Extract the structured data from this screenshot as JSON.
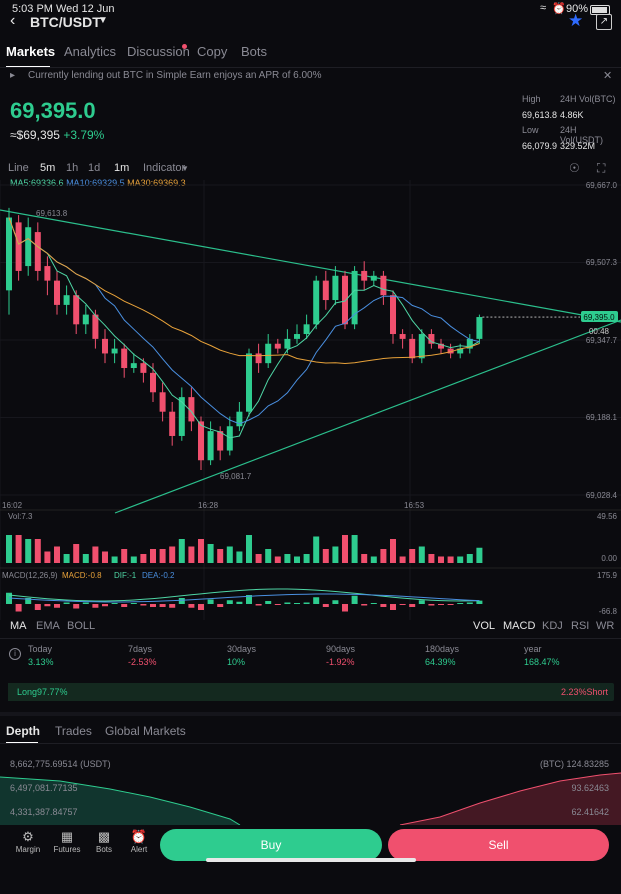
{
  "status": {
    "time": "5:03 PM",
    "date": "Wed 12 Jun",
    "battery": "90%"
  },
  "header": {
    "pair": "BTC/USDT"
  },
  "tabs": [
    "Markets",
    "Analytics",
    "Discussion",
    "Copy",
    "Bots"
  ],
  "notice": {
    "text": "Currently lending out BTC in Simple Earn enjoys an APR of 6.00%"
  },
  "ticker": {
    "price": "69,395.0",
    "fiat": "≈$69,395",
    "change": "+3.79%",
    "high_label": "High",
    "high": "69,613.8",
    "low_label": "Low",
    "low": "66,079.9",
    "vol_btc_label": "24H Vol(BTC)",
    "vol_btc": "4.86K",
    "vol_usdt_label": "24H Vol(USDT)",
    "vol_usdt": "329.52M"
  },
  "intervals": [
    "Line",
    "5m",
    "1h",
    "1d",
    "1m",
    "Indicator"
  ],
  "indicators": {
    "ma5": "MA5:69336.6",
    "ma10": "MA10:69329.5",
    "ma30": "MA30:69369.3"
  },
  "chart_data": {
    "type": "candlestick",
    "y_ticks": [
      "69,667.0",
      "69,507.3",
      "69,347.7",
      "69,188.1",
      "69,028.4"
    ],
    "x_ticks": [
      "16:02",
      "16:28",
      "16:53"
    ],
    "price_tag": "69,395.0",
    "countdown": "00:48",
    "high_marker": "69,613.8",
    "low_marker": "69,081.7",
    "vol_label": "Vol:7.3",
    "vol_ticks": [
      "49.56",
      "0.00"
    ],
    "macd_label": "MACD(12,26,9)",
    "macd_values": {
      "macd": "MACD:-0.8",
      "dif": "DIF:-1",
      "dea": "DEA:-0.2"
    },
    "macd_ticks": [
      "175.9",
      "-66.8"
    ],
    "ylim": [
      69028.4,
      69667.0
    ],
    "candles": [
      {
        "o": 69450,
        "c": 69600,
        "h": 69620,
        "l": 69400
      },
      {
        "o": 69590,
        "c": 69490,
        "h": 69605,
        "l": 69470
      },
      {
        "o": 69500,
        "c": 69580,
        "h": 69600,
        "l": 69480
      },
      {
        "o": 69570,
        "c": 69490,
        "h": 69590,
        "l": 69470
      },
      {
        "o": 69500,
        "c": 69470,
        "h": 69520,
        "l": 69440
      },
      {
        "o": 69470,
        "c": 69420,
        "h": 69490,
        "l": 69400
      },
      {
        "o": 69420,
        "c": 69440,
        "h": 69460,
        "l": 69400
      },
      {
        "o": 69440,
        "c": 69380,
        "h": 69450,
        "l": 69360
      },
      {
        "o": 69380,
        "c": 69400,
        "h": 69420,
        "l": 69360
      },
      {
        "o": 69400,
        "c": 69350,
        "h": 69410,
        "l": 69330
      },
      {
        "o": 69350,
        "c": 69320,
        "h": 69370,
        "l": 69300
      },
      {
        "o": 69320,
        "c": 69330,
        "h": 69350,
        "l": 69300
      },
      {
        "o": 69330,
        "c": 69290,
        "h": 69340,
        "l": 69270
      },
      {
        "o": 69290,
        "c": 69300,
        "h": 69320,
        "l": 69280
      },
      {
        "o": 69300,
        "c": 69280,
        "h": 69310,
        "l": 69260
      },
      {
        "o": 69280,
        "c": 69240,
        "h": 69300,
        "l": 69220
      },
      {
        "o": 69240,
        "c": 69200,
        "h": 69260,
        "l": 69180
      },
      {
        "o": 69200,
        "c": 69150,
        "h": 69220,
        "l": 69130
      },
      {
        "o": 69150,
        "c": 69230,
        "h": 69250,
        "l": 69140
      },
      {
        "o": 69230,
        "c": 69180,
        "h": 69250,
        "l": 69160
      },
      {
        "o": 69180,
        "c": 69100,
        "h": 69190,
        "l": 69080
      },
      {
        "o": 69100,
        "c": 69160,
        "h": 69180,
        "l": 69090
      },
      {
        "o": 69160,
        "c": 69120,
        "h": 69170,
        "l": 69100
      },
      {
        "o": 69120,
        "c": 69170,
        "h": 69190,
        "l": 69110
      },
      {
        "o": 69170,
        "c": 69200,
        "h": 69220,
        "l": 69160
      },
      {
        "o": 69200,
        "c": 69320,
        "h": 69330,
        "l": 69190
      },
      {
        "o": 69320,
        "c": 69300,
        "h": 69340,
        "l": 69280
      },
      {
        "o": 69300,
        "c": 69340,
        "h": 69360,
        "l": 69290
      },
      {
        "o": 69340,
        "c": 69330,
        "h": 69350,
        "l": 69320
      },
      {
        "o": 69330,
        "c": 69350,
        "h": 69370,
        "l": 69320
      },
      {
        "o": 69350,
        "c": 69360,
        "h": 69380,
        "l": 69340
      },
      {
        "o": 69360,
        "c": 69380,
        "h": 69400,
        "l": 69350
      },
      {
        "o": 69380,
        "c": 69470,
        "h": 69480,
        "l": 69370
      },
      {
        "o": 69470,
        "c": 69430,
        "h": 69490,
        "l": 69410
      },
      {
        "o": 69430,
        "c": 69480,
        "h": 69500,
        "l": 69420
      },
      {
        "o": 69480,
        "c": 69380,
        "h": 69490,
        "l": 69370
      },
      {
        "o": 69380,
        "c": 69490,
        "h": 69500,
        "l": 69370
      },
      {
        "o": 69490,
        "c": 69470,
        "h": 69510,
        "l": 69450
      },
      {
        "o": 69470,
        "c": 69480,
        "h": 69490,
        "l": 69460
      },
      {
        "o": 69480,
        "c": 69440,
        "h": 69490,
        "l": 69420
      },
      {
        "o": 69440,
        "c": 69360,
        "h": 69450,
        "l": 69340
      },
      {
        "o": 69360,
        "c": 69350,
        "h": 69370,
        "l": 69330
      },
      {
        "o": 69350,
        "c": 69310,
        "h": 69360,
        "l": 69300
      },
      {
        "o": 69310,
        "c": 69360,
        "h": 69370,
        "l": 69300
      },
      {
        "o": 69360,
        "c": 69340,
        "h": 69370,
        "l": 69330
      },
      {
        "o": 69340,
        "c": 69330,
        "h": 69350,
        "l": 69320
      },
      {
        "o": 69330,
        "c": 69320,
        "h": 69340,
        "l": 69310
      },
      {
        "o": 69320,
        "c": 69330,
        "h": 69340,
        "l": 69310
      },
      {
        "o": 69330,
        "c": 69350,
        "h": 69360,
        "l": 69320
      },
      {
        "o": 69350,
        "c": 69395,
        "h": 69400,
        "l": 69340
      }
    ],
    "ma_series": [
      {
        "name": "MA5",
        "color": "#4fd6a5"
      },
      {
        "name": "MA10",
        "color": "#4a8fe0"
      },
      {
        "name": "MA30",
        "color": "#e8a23a"
      }
    ]
  },
  "ma_row": {
    "left": [
      "MA",
      "EMA",
      "BOLL"
    ],
    "right": [
      "VOL",
      "MACD",
      "KDJ",
      "RSI",
      "WR"
    ]
  },
  "perf": [
    {
      "label": "Today",
      "value": "3.13%",
      "dir": "up"
    },
    {
      "label": "7days",
      "value": "-2.53%",
      "dir": "down"
    },
    {
      "label": "30days",
      "value": "10%",
      "dir": "up"
    },
    {
      "label": "90days",
      "value": "-1.92%",
      "dir": "down"
    },
    {
      "label": "180days",
      "value": "64.39%",
      "dir": "up"
    },
    {
      "label": "year",
      "value": "168.47%",
      "dir": "up"
    }
  ],
  "long_short": {
    "long": "Long97.77%",
    "short": "2.23%Short",
    "long_fraction": 0.9777
  },
  "depth": {
    "tabs": [
      "Depth",
      "Trades",
      "Global Markets"
    ],
    "left_values": [
      "8,662,775.69514 (USDT)",
      "6,497,081.77135",
      "4,331,387.84757"
    ],
    "right_values": [
      "(BTC) 124.83285",
      "93.62463",
      "62.41642"
    ]
  },
  "nav": [
    "Margin",
    "Futures",
    "Bots",
    "Alert"
  ],
  "actions": {
    "buy": "Buy",
    "sell": "Sell"
  },
  "colors": {
    "up": "#2ecc8f",
    "down": "#f0506e",
    "accent": "#2f6bff"
  }
}
